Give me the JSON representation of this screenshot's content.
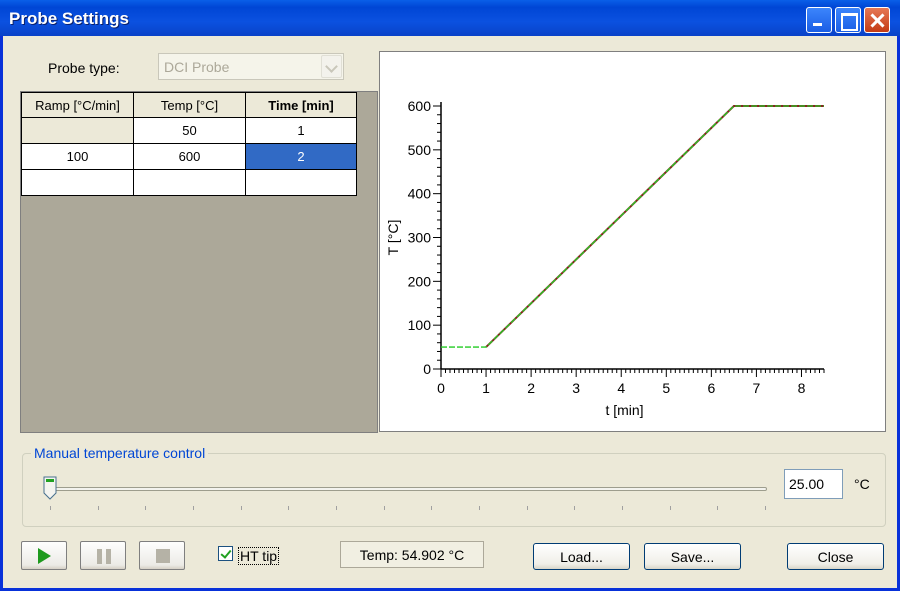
{
  "window": {
    "title": "Probe Settings"
  },
  "probe": {
    "label": "Probe type:",
    "value": "DCI Probe"
  },
  "table": {
    "headers": [
      "Ramp [°C/min]",
      "Temp [°C]",
      "Time [min]"
    ],
    "rows": [
      [
        "",
        "50",
        "1"
      ],
      [
        "100",
        "600",
        "2"
      ],
      [
        "",
        "",
        ""
      ]
    ]
  },
  "chart_data": {
    "type": "line",
    "xlabel": "t [min]",
    "ylabel": "T [°C]",
    "xlim": [
      0,
      8.5
    ],
    "ylim": [
      0,
      600
    ],
    "xticks": [
      0,
      1,
      2,
      3,
      4,
      5,
      6,
      7,
      8
    ],
    "yticks": [
      0,
      100,
      200,
      300,
      400,
      500,
      600
    ],
    "grid": false,
    "series": [
      {
        "color": "#8b2020",
        "x": [
          1.0,
          6.5,
          8.5
        ],
        "y": [
          50,
          600,
          600
        ]
      },
      {
        "color": "#22cc22",
        "x": [
          0,
          1.0,
          6.5,
          8.5
        ],
        "y": [
          50,
          50,
          600,
          600
        ]
      }
    ]
  },
  "manual": {
    "legend": "Manual temperature control",
    "value": "25.00",
    "unit": "°C",
    "slider_fraction": 0.0
  },
  "controls": {
    "ht_tip_label": "HT tip",
    "ht_tip_checked": true,
    "temp_readout": "Temp: 54.902 °C",
    "load_label": "Load...",
    "save_label": "Save...",
    "close_label": "Close"
  }
}
